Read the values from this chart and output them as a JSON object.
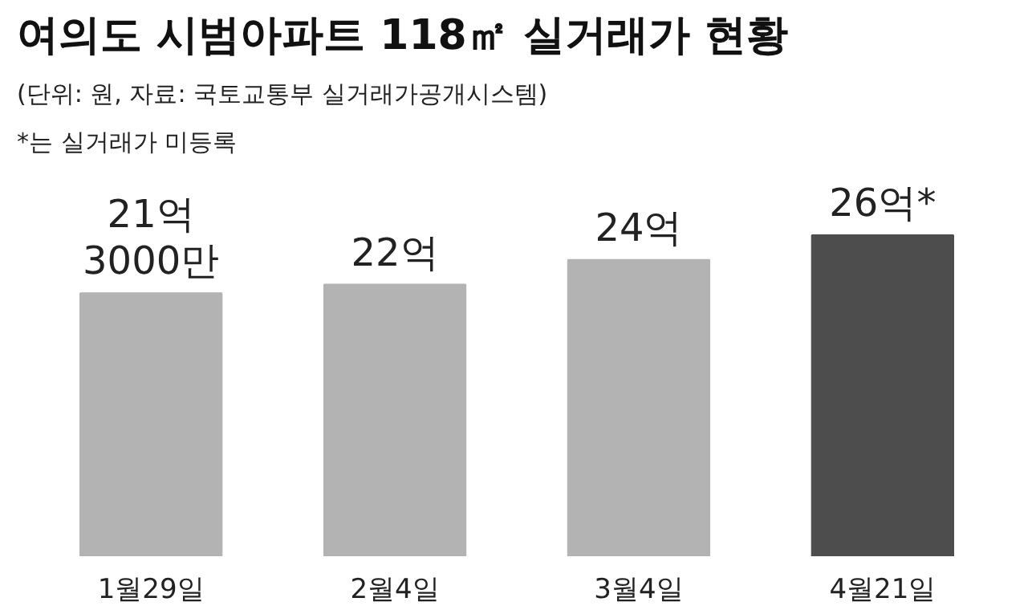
{
  "chart_data": {
    "type": "bar",
    "title": "여의도 시범아파트 118㎡ 실거래가 현황",
    "subtitle": "(단위: 원, 자료: 국토교통부 실거래가공개시스템)",
    "annotations": [
      "*는 실거래가 미등록"
    ],
    "categories": [
      "1월29일",
      "2월4일",
      "3월4일",
      "4월21일"
    ],
    "values": [
      21.3,
      22,
      24,
      26
    ],
    "colors": [
      "#b3b3b3",
      "#b3b3b3",
      "#b3b3b3",
      "#4d4d4d"
    ],
    "value_labels": [
      "21억\n3000만",
      "22억",
      "24억",
      "26억*"
    ],
    "grid": false
  }
}
